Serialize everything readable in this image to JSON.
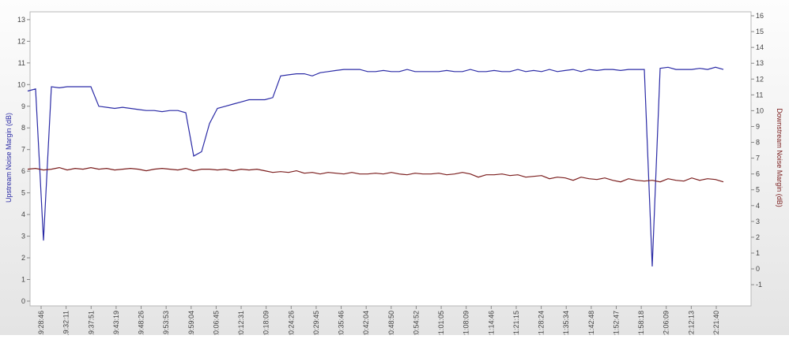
{
  "chart_data": {
    "type": "line",
    "y_label": "Upstream Noise Margin (dB)",
    "y2_label": "Downstream Noise Margin (dB)",
    "xticks": [
      "19:28:46",
      "19:32:11",
      "19:37:51",
      "19:43:19",
      "19:48:26",
      "19:53:53",
      "19:59:04",
      "20:06:45",
      "20:12:31",
      "20:18:09",
      "20:24:26",
      "20:29:45",
      "20:35:46",
      "20:42:04",
      "20:48:50",
      "20:54:52",
      "21:01:05",
      "21:08:09",
      "21:14:46",
      "21:21:15",
      "21:28:24",
      "21:35:34",
      "21:42:48",
      "21:52:47",
      "21:58:18",
      "22:06:09",
      "22:12:13",
      "22:21:40"
    ],
    "ylim": [
      -0.22,
      13.36
    ],
    "yticks": [
      0,
      1,
      2,
      3,
      4,
      5,
      6,
      7,
      8,
      9,
      10,
      11,
      12,
      13
    ],
    "y2lim": [
      -2.34,
      16.25
    ],
    "y2ticks": [
      -1,
      0,
      1,
      2,
      3,
      4,
      5,
      6,
      7,
      8,
      9,
      10,
      11,
      12,
      13,
      14,
      15,
      16
    ],
    "series": [
      {
        "color": "#2b2ba6",
        "values": [
          9.7,
          9.8,
          2.8,
          9.9,
          9.85,
          9.9,
          9.9,
          9.9,
          9.9,
          9.0,
          8.95,
          8.9,
          8.95,
          8.9,
          8.85,
          8.8,
          8.8,
          8.75,
          8.8,
          8.8,
          8.7,
          6.7,
          6.9,
          8.2,
          8.9,
          9.0,
          9.1,
          9.2,
          9.3,
          9.3,
          9.3,
          9.4,
          10.4,
          10.45,
          10.5,
          10.5,
          10.4,
          10.55,
          10.6,
          10.65,
          10.7,
          10.7,
          10.7,
          10.6,
          10.6,
          10.65,
          10.6,
          10.6,
          10.7,
          10.6,
          10.6,
          10.6,
          10.6,
          10.65,
          10.6,
          10.6,
          10.7,
          10.6,
          10.6,
          10.65,
          10.6,
          10.6,
          10.7,
          10.6,
          10.65,
          10.6,
          10.7,
          10.6,
          10.65,
          10.7,
          10.6,
          10.7,
          10.65,
          10.7,
          10.7,
          10.65,
          10.7,
          10.7,
          10.7,
          1.6,
          10.75,
          10.8,
          10.7,
          10.7,
          10.7,
          10.75,
          10.7,
          10.8,
          10.7
        ]
      },
      {
        "color": "#7a1c1c",
        "axis": "y2",
        "values": [
          6.3,
          6.35,
          6.25,
          6.3,
          6.4,
          6.25,
          6.35,
          6.3,
          6.4,
          6.3,
          6.35,
          6.25,
          6.3,
          6.35,
          6.3,
          6.2,
          6.3,
          6.35,
          6.3,
          6.25,
          6.35,
          6.2,
          6.3,
          6.3,
          6.25,
          6.3,
          6.2,
          6.3,
          6.25,
          6.3,
          6.2,
          6.1,
          6.15,
          6.1,
          6.2,
          6.05,
          6.1,
          6.0,
          6.1,
          6.05,
          6.0,
          6.1,
          6.0,
          6.0,
          6.05,
          6.0,
          6.1,
          6.0,
          5.95,
          6.05,
          6.0,
          6.0,
          6.05,
          5.95,
          6.0,
          6.1,
          6.0,
          5.8,
          5.95,
          5.95,
          6.0,
          5.9,
          5.95,
          5.8,
          5.85,
          5.9,
          5.7,
          5.8,
          5.75,
          5.6,
          5.8,
          5.7,
          5.65,
          5.75,
          5.6,
          5.5,
          5.7,
          5.6,
          5.55,
          5.6,
          5.5,
          5.7,
          5.6,
          5.55,
          5.75,
          5.6,
          5.7,
          5.65,
          5.5
        ]
      }
    ]
  }
}
